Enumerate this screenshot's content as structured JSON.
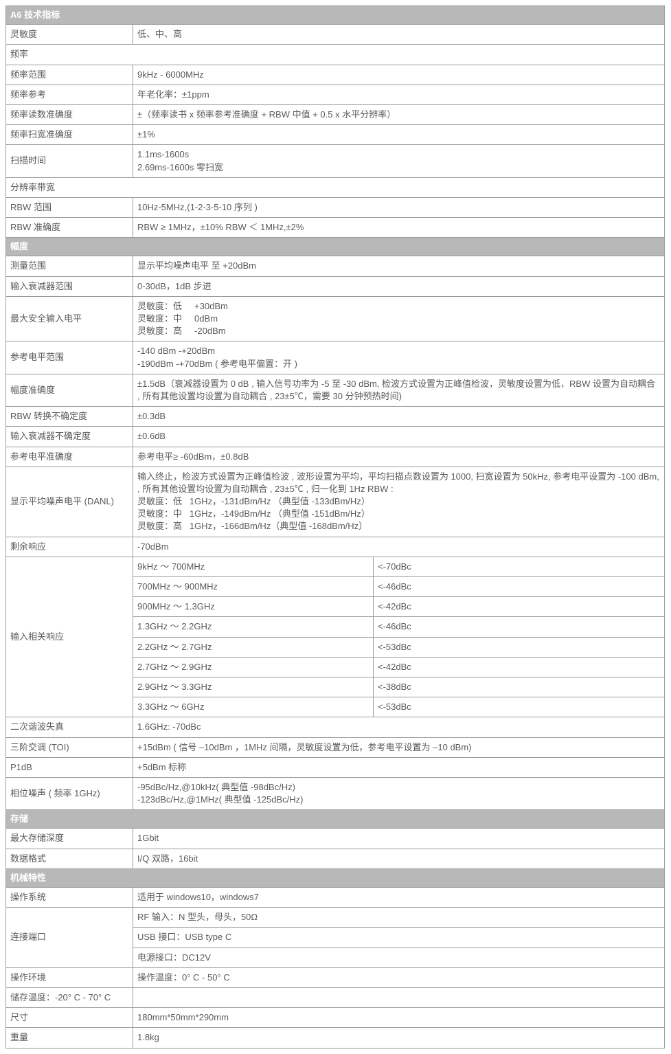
{
  "sections": {
    "tech": "A6 技术指标",
    "amp": "幅度",
    "store": "存储",
    "mech": "机械特性"
  },
  "rows": {
    "sensitivity": {
      "k": "灵敏度",
      "v": "低、中、高"
    },
    "freq_sub": "频率",
    "freq_range": {
      "k": "频率范围",
      "v": "9kHz - 6000MHz"
    },
    "freq_ref": {
      "k": "频率参考",
      "v": "年老化率：±1ppm"
    },
    "freq_readout_acc": {
      "k": "频率读数准确度",
      "v": "±（频率读书 x 频率参考准确度 + RBW 中值 + 0.5 x 水平分辨率）"
    },
    "freq_span_acc": {
      "k": "频率扫宽准确度",
      "v": "±1%"
    },
    "sweep_time": {
      "k": "扫描时间",
      "v": "1.1ms-1600s\n2.69ms-1600s 零扫宽"
    },
    "rbw_sub": "分辨率带宽",
    "rbw_range": {
      "k": "RBW 范围",
      "v": "10Hz-5MHz,(1-2-3-5-10 序列 )"
    },
    "rbw_acc": {
      "k": "RBW 准确度",
      "v": "RBW ≥ 1MHz，±10%   RBW ＜ 1MHz,±2%"
    },
    "meas_range": {
      "k": "测量范围",
      "v": "显示平均噪声电平 至 +20dBm"
    },
    "input_att_range": {
      "k": "输入衰减器范围",
      "v": "0-30dB，1dB 步进"
    },
    "max_safe_input": {
      "k": "最大安全输入电平",
      "v": "灵敏度：低     +30dBm\n灵敏度：中     0dBm\n灵敏度：高     -20dBm"
    },
    "ref_level_range": {
      "k": "参考电平范围",
      "v": "-140 dBm -+20dBm\n-190dBm -+70dBm ( 参考电平偏置：开 )"
    },
    "amp_acc": {
      "k": "幅度准确度",
      "v": "±1.5dB（衰减器设置为 0 dB , 输入信号功率为 -5 至 -30 dBm, 检波方式设置为正峰值检波，灵敏度设置为低，RBW 设置为自动耦合 , 所有其他设置均设置为自动耦合 , 23±5℃，需要 30 分钟预热时间)"
    },
    "rbw_switch_uncert": {
      "k": "RBW 转换不确定度",
      "v": "±0.3dB"
    },
    "input_att_uncert": {
      "k": "输入衰减器不确定度",
      "v": "±0.6dB"
    },
    "ref_level_acc": {
      "k": "参考电平准确度",
      "v": "参考电平≥ -60dBm，±0.8dB"
    },
    "danl": {
      "k": "显示平均噪声电平 (DANL)",
      "v": "输入终止，检波方式设置为正峰值检波 , 波形设置为平均，平均扫描点数设置为 1000, 扫宽设置为 50kHz, 参考电平设置为 -100 dBm, , 所有其他设置均设置为自动耦合 , 23±5℃ , 归一化到 1Hz RBW :\n灵敏度：低   1GHz，-131dBm/Hz （典型值 -133dBm/Hz）\n灵敏度：中   1GHz，-149dBm/Hz （典型值 -151dBm/Hz）\n灵敏度：高   1GHz，-166dBm/Hz（典型值 -168dBm/Hz）"
    },
    "residual": {
      "k": "剩余响应",
      "v": "-70dBm"
    },
    "input_rel": {
      "k": "输入相关响应"
    },
    "input_rel_rows": [
      {
        "f": "9kHz ～ 700MHz",
        "v": "<-70dBc"
      },
      {
        "f": "700MHz ～ 900MHz",
        "v": "<-46dBc"
      },
      {
        "f": "900MHz ～ 1.3GHz",
        "v": "<-42dBc"
      },
      {
        "f": "1.3GHz ～ 2.2GHz",
        "v": "<-46dBc"
      },
      {
        "f": "2.2GHz ～ 2.7GHz",
        "v": "<-53dBc"
      },
      {
        "f": "2.7GHz ～ 2.9GHz",
        "v": "<-42dBc"
      },
      {
        "f": "2.9GHz ～ 3.3GHz",
        "v": "<-38dBc"
      },
      {
        "f": "3.3GHz ～ 6GHz",
        "v": "<-53dBc"
      }
    ],
    "shd": {
      "k": "二次谐波失真",
      "v": "1.6GHz:    -70dBc"
    },
    "toi": {
      "k": "三阶交调 (TOI)",
      "v": "+15dBm ( 信号 –10dBm ，1MHz 间隔，灵敏度设置为低，参考电平设置为 –10 dBm)"
    },
    "p1db": {
      "k": "P1dB",
      "v": "+5dBm 标称"
    },
    "phase_noise": {
      "k": "相位噪声 ( 频率 1GHz)",
      "v": "-95dBc/Hz,@10kHz( 典型值 -98dBc/Hz)\n-123dBc/Hz,@1MHz( 典型值 -125dBc/Hz)"
    },
    "max_store": {
      "k": "最大存储深度",
      "v": "1Gbit"
    },
    "data_fmt": {
      "k": "数据格式",
      "v": "I/Q 双路，16bit"
    },
    "os": {
      "k": "操作系统",
      "v": "适用于 windows10，windows7"
    },
    "conn_port": {
      "k": "连接端口"
    },
    "conn_rows": [
      "RF 输入：N 型头，母头，50Ω",
      "USB 接口：USB type C",
      "电源接口：DC12V"
    ],
    "op_env": {
      "k": "操作环境",
      "v": "操作温度：0° C - 50° C"
    },
    "store_temp": {
      "k": "储存温度：-20° C - 70° C",
      "v": ""
    },
    "size": {
      "k": "尺寸",
      "v": "180mm*50mm*290mm"
    },
    "weight": {
      "k": "重量",
      "v": "1.8kg"
    }
  }
}
